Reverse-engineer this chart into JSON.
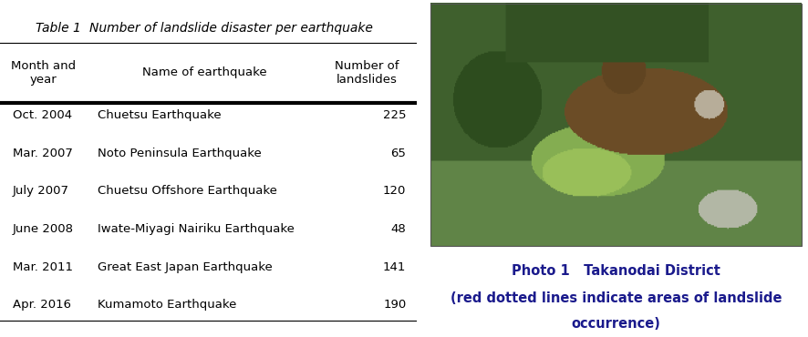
{
  "table_title_label": "Table 1",
  "table_title_text": "Number of landslide disaster per earthquake",
  "col_headers": [
    "Month and\nyear",
    "Name of earthquake",
    "Number of\nlandslides"
  ],
  "rows": [
    [
      "Oct. 2004",
      "Chuetsu Earthquake",
      "225"
    ],
    [
      "Mar. 2007",
      "Noto Peninsula Earthquake",
      "65"
    ],
    [
      "July 2007",
      "Chuetsu Offshore Earthquake",
      "120"
    ],
    [
      "June 2008",
      "Iwate-Miyagi Nairiku Earthquake",
      "48"
    ],
    [
      "Mar. 2011",
      "Great East Japan Earthquake",
      "141"
    ],
    [
      "Apr. 2016",
      "Kumamoto Earthquake",
      "190"
    ]
  ],
  "photo_caption_line1": "Photo 1   Takanodai District",
  "photo_caption_line2": "(red dotted lines indicate areas of landslide",
  "photo_caption_line3": "occurrence)",
  "bg_color": "#ffffff",
  "text_color": "#000000",
  "caption_color": "#1a1a8c",
  "title_fontsize": 10,
  "header_fontsize": 9.5,
  "data_fontsize": 9.5,
  "caption_fontsize": 10
}
